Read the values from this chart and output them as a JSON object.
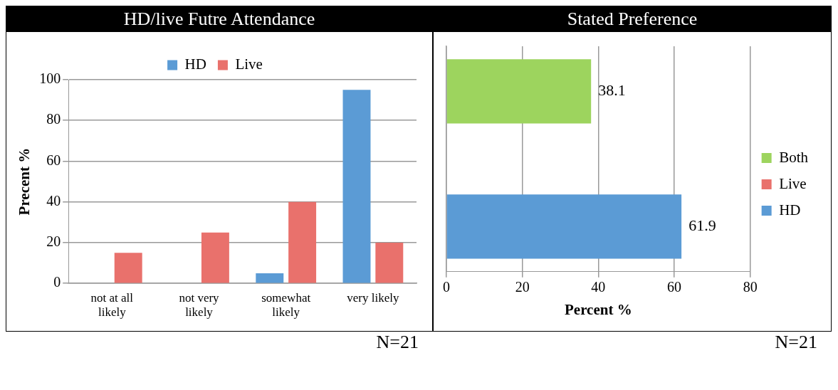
{
  "chart_data": [
    {
      "type": "bar",
      "title": "HD/live Futre Attendance",
      "ylabel": "Precent %",
      "categories": [
        "not at all likely",
        "not very likely",
        "somewhat likely",
        "very likely"
      ],
      "series": [
        {
          "name": "HD",
          "color": "#5b9bd5",
          "values": [
            0,
            0,
            5,
            95
          ]
        },
        {
          "name": "Live",
          "color": "#e9716c",
          "values": [
            15,
            25,
            40,
            20
          ]
        }
      ],
      "ylim": [
        0,
        100
      ],
      "yticks": [
        0,
        20,
        40,
        60,
        80,
        100
      ],
      "grid": "y",
      "legend": "top",
      "annotations": [
        "N=21"
      ]
    },
    {
      "type": "bar",
      "orientation": "horizontal",
      "title": "Stated Preference",
      "xlabel": "Percent %",
      "categories": [
        null
      ],
      "series": [
        {
          "name": "Both",
          "color": "#9dd45e",
          "values": [
            38.1
          ],
          "value_labels": [
            "38.1"
          ]
        },
        {
          "name": "Live",
          "color": "#e9716c",
          "values": [
            0
          ],
          "value_labels": [
            null
          ]
        },
        {
          "name": "HD",
          "color": "#5b9bd5",
          "values": [
            61.9
          ],
          "value_labels": [
            "61.9"
          ]
        }
      ],
      "xlim": [
        0,
        80
      ],
      "xticks": [
        0,
        20,
        40,
        60,
        80
      ],
      "grid": "x",
      "legend": "right",
      "annotations": [
        "N=21"
      ]
    }
  ]
}
